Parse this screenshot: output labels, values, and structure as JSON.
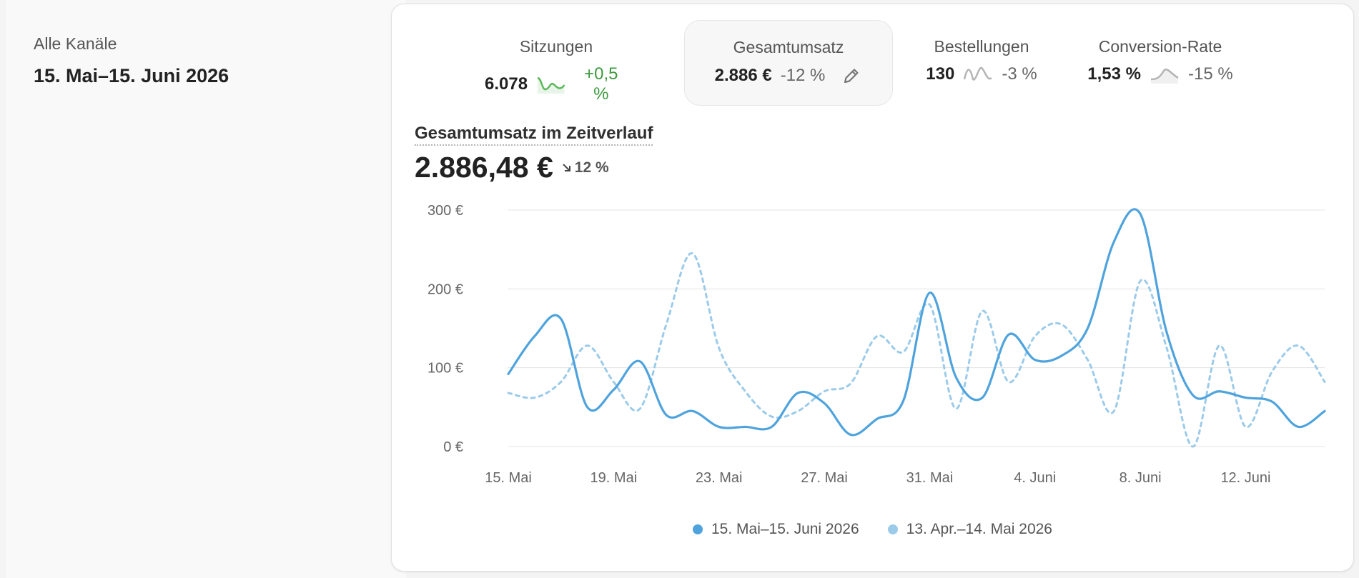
{
  "sidebar": {
    "channel_label": "Alle Kanäle",
    "date_range": "15. Mai–15. Juni 2026"
  },
  "metrics": [
    {
      "title": "Sitzungen",
      "value": "6.078",
      "change": "+0,5 %",
      "change_color": "#3d9a3d",
      "spark_color": "#5cb85c",
      "active": false
    },
    {
      "title": "Gesamtumsatz",
      "value": "2.886 €",
      "change": "-12 %",
      "change_color": "#666666",
      "active": true,
      "edit_icon": "pencil-icon"
    },
    {
      "title": "Bestellungen",
      "value": "130",
      "change": "-3 %",
      "change_color": "#666666",
      "spark_color": "#b5b5b5",
      "active": false
    },
    {
      "title": "Conversion-Rate",
      "value": "1,53 %",
      "change": "-15 %",
      "change_color": "#666666",
      "spark_color": "#b5b5b5",
      "active": false
    }
  ],
  "chart_header": {
    "title": "Gesamtumsatz im Zeitverlauf",
    "total": "2.886,48 €",
    "change": "12 %",
    "change_icon": "arrow-down-right-icon"
  },
  "chart_data": {
    "type": "line",
    "title": "Gesamtumsatz im Zeitverlauf",
    "x_tick_labels": [
      "15. Mai",
      "19. Mai",
      "23. Mai",
      "27. Mai",
      "31. Mai",
      "4. Juni",
      "8. Juni",
      "12. Juni"
    ],
    "y_tick_labels": [
      "0 €",
      "100 €",
      "200 €",
      "300 €"
    ],
    "ylim": [
      0,
      300
    ],
    "grid": true,
    "legend_position": "bottom-center",
    "series": [
      {
        "name": "15. Mai–15. Juni 2026",
        "color": "#4fa3dd",
        "dashed": false,
        "values": [
          92,
          140,
          162,
          50,
          72,
          108,
          40,
          45,
          25,
          25,
          25,
          68,
          55,
          15,
          35,
          58,
          195,
          88,
          62,
          142,
          110,
          115,
          150,
          260,
          295,
          145,
          65,
          70,
          62,
          57,
          25,
          45
        ]
      },
      {
        "name": "13. Apr.–14. Mai 2026",
        "color": "#9ccbea",
        "dashed": true,
        "values": [
          68,
          62,
          82,
          128,
          82,
          48,
          155,
          245,
          125,
          70,
          38,
          45,
          70,
          80,
          140,
          120,
          180,
          48,
          172,
          82,
          140,
          155,
          110,
          45,
          210,
          125,
          0,
          128,
          25,
          95,
          128,
          82
        ]
      }
    ]
  }
}
